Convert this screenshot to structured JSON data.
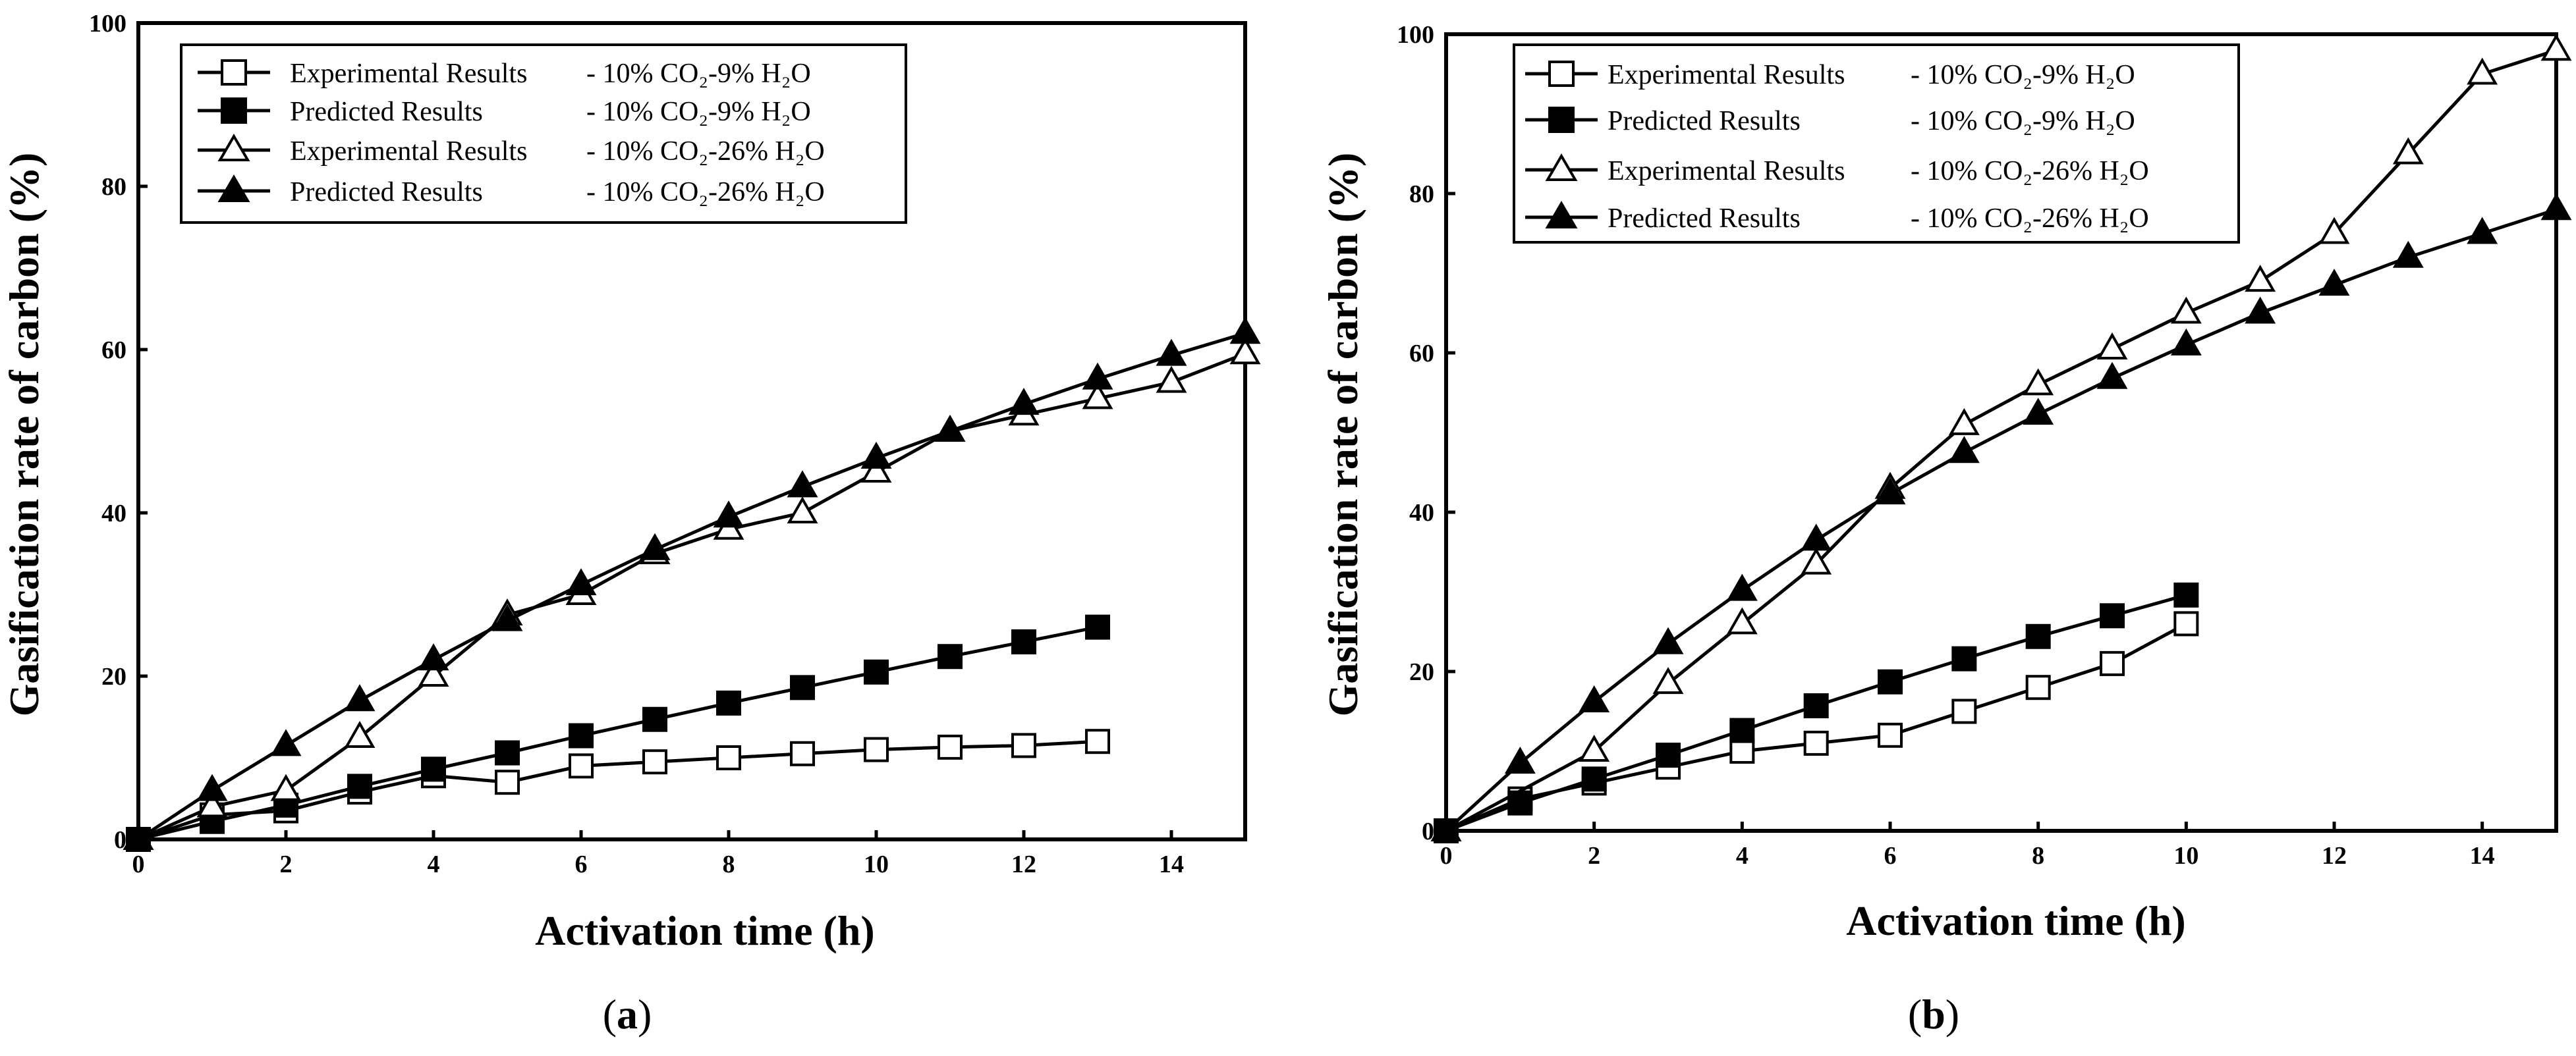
{
  "chart_data": [
    {
      "type": "line",
      "panel_label": "a",
      "xlabel": "Activation time (h)",
      "ylabel": "Gasification rate of carbon (%)",
      "xlim": [
        0,
        15
      ],
      "ylim": [
        0,
        100
      ],
      "xticks": [
        0,
        2,
        4,
        6,
        8,
        10,
        12,
        14
      ],
      "yticks": [
        0,
        20,
        40,
        60,
        80,
        100
      ],
      "legend_position": "top-left",
      "series": [
        {
          "name": "Experimental Results - 10% CO₂-9% H₂O",
          "legend_name": "Experimental Results",
          "legend_condition": "- 10% CO₂-9% H₂O",
          "marker": "square-open",
          "x": [
            0,
            1,
            2,
            3,
            4,
            5,
            6,
            7,
            8,
            9,
            10,
            11,
            12,
            13
          ],
          "values": [
            0,
            3,
            3.5,
            5.8,
            7.8,
            7,
            9,
            9.5,
            10,
            10.5,
            11,
            11.3,
            11.5,
            12
          ]
        },
        {
          "name": "Predicted Results - 10% CO₂-9% H₂O",
          "legend_name": "Predicted Results",
          "legend_condition": "- 10% CO₂-9% H₂O",
          "marker": "square-filled",
          "x": [
            0,
            1,
            2,
            3,
            4,
            5,
            6,
            7,
            8,
            9,
            10,
            11,
            12,
            13
          ],
          "values": [
            0,
            2.2,
            4.2,
            6.5,
            8.6,
            10.6,
            12.7,
            14.7,
            16.7,
            18.6,
            20.5,
            22.4,
            24.2,
            26
          ]
        },
        {
          "name": "Experimental Results - 10% CO₂-26% H₂O",
          "legend_name": "Experimental Results",
          "legend_condition": "- 10% CO₂-26% H₂O",
          "marker": "triangle-open",
          "x": [
            0,
            1,
            2,
            3,
            4,
            5,
            6,
            7,
            8,
            9,
            10,
            11,
            12,
            13,
            14,
            15
          ],
          "values": [
            0,
            4,
            6,
            12.5,
            20,
            27.5,
            30,
            35,
            38,
            40,
            45,
            50,
            52,
            54,
            56,
            59.5
          ]
        },
        {
          "name": "Predicted Results - 10% CO₂-26% H₂O",
          "legend_name": "Predicted Results",
          "legend_condition": "- 10% CO₂-26% H₂O",
          "marker": "triangle-filled",
          "x": [
            0,
            1,
            2,
            3,
            4,
            5,
            6,
            7,
            8,
            9,
            10,
            11,
            12,
            13,
            14,
            15
          ],
          "values": [
            0,
            6,
            11.5,
            17,
            22,
            26.8,
            31.2,
            35.5,
            39.5,
            43.2,
            46.7,
            50,
            53.3,
            56.4,
            59.3,
            62
          ]
        }
      ]
    },
    {
      "type": "line",
      "panel_label": "b",
      "xlabel": "Activation time (h)",
      "ylabel": "Gasification rate of carbon (%)",
      "xlim": [
        0,
        15
      ],
      "ylim": [
        0,
        100
      ],
      "xticks": [
        0,
        2,
        4,
        6,
        8,
        10,
        12,
        14
      ],
      "yticks": [
        0,
        20,
        40,
        60,
        80,
        100
      ],
      "legend_position": "top-left",
      "series": [
        {
          "name": "Experimental Results - 10% CO₂-9% H₂O",
          "legend_name": "Experimental Results",
          "legend_condition": "- 10% CO₂-9% H₂O",
          "marker": "square-open",
          "x": [
            0,
            1,
            2,
            3,
            4,
            5,
            6,
            7,
            8,
            9,
            10
          ],
          "values": [
            0,
            4,
            6,
            8,
            10,
            11,
            12,
            15,
            18,
            21,
            26
          ]
        },
        {
          "name": "Predicted Results - 10% CO₂-9% H₂O",
          "legend_name": "Predicted Results",
          "legend_condition": "- 10% CO₂-9% H₂O",
          "marker": "square-filled",
          "x": [
            0,
            1,
            2,
            3,
            4,
            5,
            6,
            7,
            8,
            9,
            10
          ],
          "values": [
            0,
            3.5,
            6.5,
            9.5,
            12.6,
            15.7,
            18.7,
            21.6,
            24.4,
            27,
            29.6
          ]
        },
        {
          "name": "Experimental Results - 10% CO₂-26% H₂O",
          "legend_name": "Experimental Results",
          "legend_condition": "- 10% CO₂-26% H₂O",
          "marker": "triangle-open",
          "x": [
            0,
            2,
            3,
            4,
            5,
            6,
            7,
            8,
            9,
            10,
            11,
            12,
            13,
            14,
            15
          ],
          "values": [
            0,
            10,
            18.5,
            26,
            33.5,
            43,
            51,
            56,
            60.5,
            65,
            69,
            75,
            85,
            95,
            98
          ]
        },
        {
          "name": "Predicted Results - 10% CO₂-26% H₂O",
          "legend_name": "Predicted Results",
          "legend_condition": "- 10% CO₂-26% H₂O",
          "marker": "triangle-filled",
          "x": [
            0,
            1,
            2,
            3,
            4,
            5,
            6,
            7,
            8,
            9,
            10,
            11,
            12,
            13,
            14,
            15
          ],
          "values": [
            0,
            8.5,
            16.2,
            23.5,
            30.2,
            36.5,
            42.3,
            47.5,
            52.3,
            56.8,
            61,
            65,
            68.5,
            72,
            75,
            78
          ]
        }
      ]
    }
  ]
}
